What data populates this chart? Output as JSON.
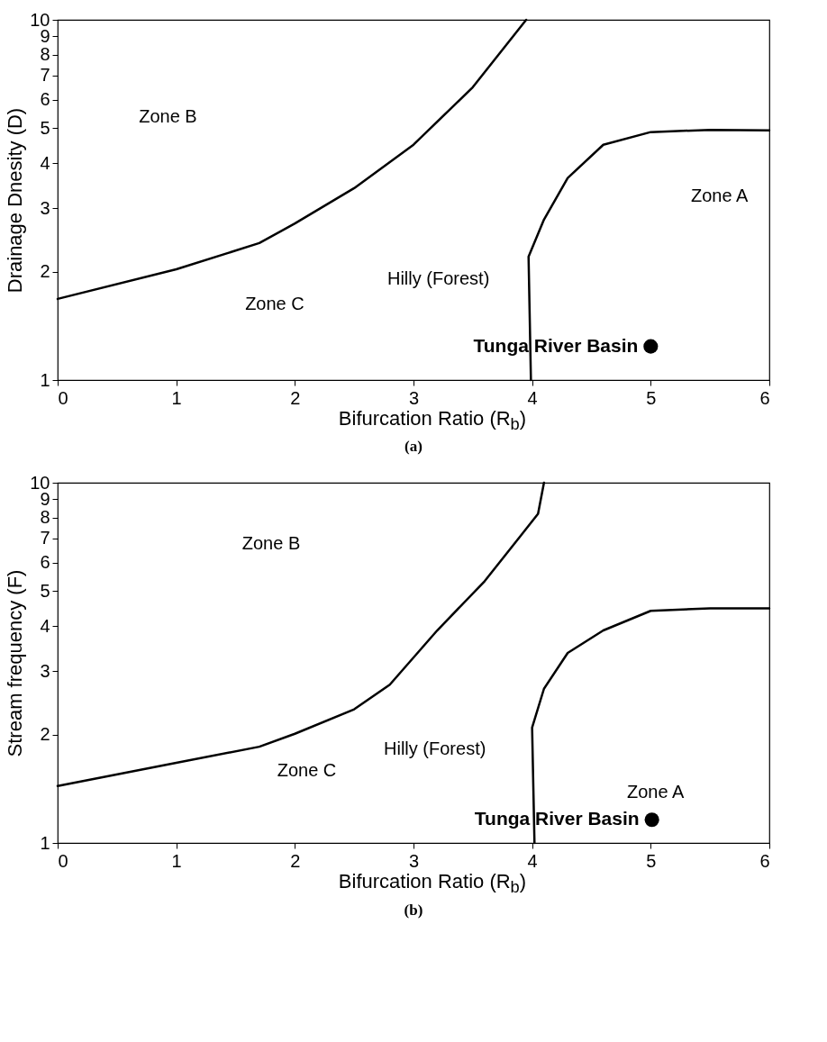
{
  "chart_data": [
    {
      "type": "line",
      "title": "(a)",
      "xlabel": "Bifurcation Ratio (R$_{b}$)",
      "ylabel": "Drainage Dnesity (D)",
      "log": "y",
      "xlim": [
        0,
        6
      ],
      "ylim": [
        1,
        10
      ],
      "xticks": [
        0,
        1,
        2,
        3,
        4,
        5,
        6
      ],
      "yticks": [
        1,
        2,
        3,
        4,
        5,
        6,
        7,
        8,
        9,
        10
      ],
      "grid": false,
      "series": [
        {
          "color": "#000000",
          "x": [
            0,
            1,
            1.7,
            2,
            2.5,
            3,
            3.5,
            3.95
          ],
          "values": [
            1.68,
            2.03,
            2.4,
            2.72,
            3.41,
            4.5,
            6.5,
            10
          ]
        },
        {
          "color": "#000000",
          "x": [
            3.99,
            3.97,
            4.1,
            4.3,
            4.6,
            5,
            5.5,
            6
          ],
          "values": [
            1,
            2.2,
            2.79,
            3.64,
            4.5,
            4.88,
            4.95,
            4.93
          ]
        },
        {
          "type": "scatter",
          "name": "Tunga River Basin",
          "color": "#000000",
          "marker": "circle",
          "x": [
            5
          ],
          "values": [
            1.24
          ]
        }
      ],
      "annotations": [
        "Zone B",
        "Zone A",
        "Hilly (Forest)",
        "Zone C"
      ]
    },
    {
      "type": "line",
      "title": "(b)",
      "xlabel": "Bifurcation Ratio (R$_{b}$)",
      "ylabel": "Stream frequency (F)",
      "log": "y",
      "xlim": [
        0,
        6
      ],
      "ylim": [
        1,
        10
      ],
      "xticks": [
        0,
        1,
        2,
        3,
        4,
        5,
        6
      ],
      "yticks": [
        1,
        2,
        3,
        4,
        5,
        6,
        7,
        8,
        9,
        10
      ],
      "grid": false,
      "series": [
        {
          "color": "#000000",
          "x": [
            0,
            1,
            1.7,
            2,
            2.5,
            2.8,
            3.2,
            3.6,
            3.9,
            4.05,
            4.1
          ],
          "values": [
            1.44,
            1.67,
            1.85,
            2.01,
            2.35,
            2.75,
            3.89,
            5.33,
            7.1,
            8.2,
            10
          ]
        },
        {
          "color": "#000000",
          "x": [
            4.02,
            4,
            4.1,
            4.3,
            4.6,
            5,
            5.5,
            6
          ],
          "values": [
            1,
            2.09,
            2.68,
            3.37,
            3.89,
            4.41,
            4.48,
            4.48
          ]
        },
        {
          "type": "scatter",
          "name": "Tunga River Basin",
          "color": "#000000",
          "marker": "circle",
          "x": [
            5.01
          ],
          "values": [
            1.16
          ]
        }
      ],
      "annotations": [
        "Zone B",
        "Zone A",
        "Hilly (Forest)",
        "Zone C"
      ]
    }
  ]
}
